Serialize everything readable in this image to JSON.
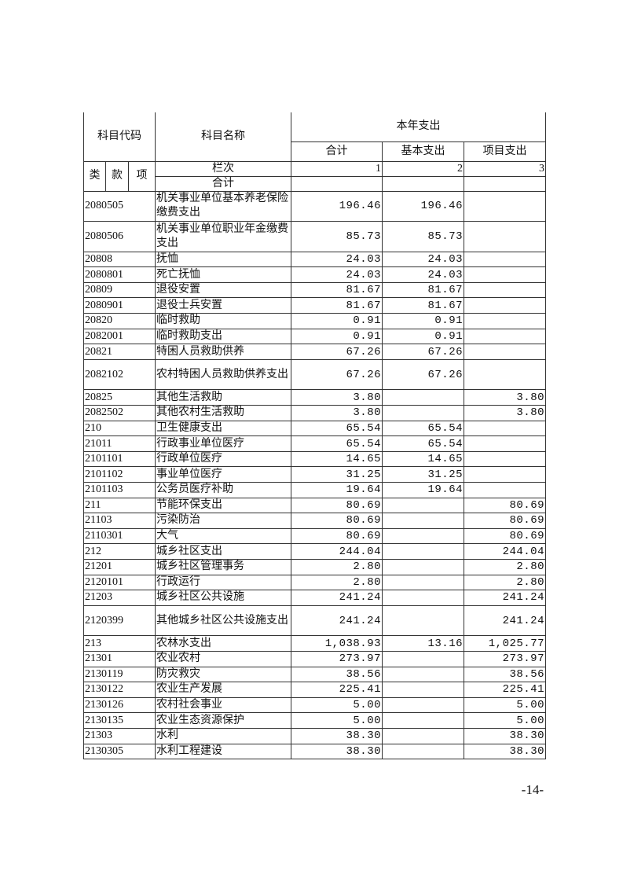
{
  "header": {
    "code_title": "科目代码",
    "name_title": "科目名称",
    "year_title": "本年支出",
    "col_total": "合计",
    "col_basic": "基本支出",
    "col_project": "项目支出",
    "lei": "类",
    "kuan": "款",
    "xiang": "项",
    "lanci": "栏次",
    "lanci_1": "1",
    "lanci_2": "2",
    "lanci_3": "3",
    "total_label": "合计"
  },
  "rows": [
    {
      "code": "2080505",
      "name": "机关事业单位基本养老保险缴费支出",
      "total": "196.46",
      "basic": "196.46",
      "project": "",
      "double": true
    },
    {
      "code": "2080506",
      "name": "机关事业单位职业年金缴费支出",
      "total": "85.73",
      "basic": "85.73",
      "project": "",
      "double": true
    },
    {
      "code": "20808",
      "name": "抚恤",
      "total": "24.03",
      "basic": "24.03",
      "project": ""
    },
    {
      "code": "2080801",
      "name": "死亡抚恤",
      "total": "24.03",
      "basic": "24.03",
      "project": ""
    },
    {
      "code": "20809",
      "name": "退役安置",
      "total": "81.67",
      "basic": "81.67",
      "project": ""
    },
    {
      "code": "2080901",
      "name": "退役士兵安置",
      "total": "81.67",
      "basic": "81.67",
      "project": ""
    },
    {
      "code": "20820",
      "name": "临时救助",
      "total": "0.91",
      "basic": "0.91",
      "project": ""
    },
    {
      "code": "2082001",
      "name": "临时救助支出",
      "total": "0.91",
      "basic": "0.91",
      "project": ""
    },
    {
      "code": "20821",
      "name": "特困人员救助供养",
      "total": "67.26",
      "basic": "67.26",
      "project": ""
    },
    {
      "code": "2082102",
      "name": "农村特困人员救助供养支出",
      "total": "67.26",
      "basic": "67.26",
      "project": "",
      "double": true
    },
    {
      "code": "20825",
      "name": "其他生活救助",
      "total": "3.80",
      "basic": "",
      "project": "3.80"
    },
    {
      "code": "2082502",
      "name": "其他农村生活救助",
      "total": "3.80",
      "basic": "",
      "project": "3.80"
    },
    {
      "code": "210",
      "name": "卫生健康支出",
      "total": "65.54",
      "basic": "65.54",
      "project": ""
    },
    {
      "code": "21011",
      "name": "行政事业单位医疗",
      "total": "65.54",
      "basic": "65.54",
      "project": ""
    },
    {
      "code": "2101101",
      "name": "行政单位医疗",
      "total": "14.65",
      "basic": "14.65",
      "project": ""
    },
    {
      "code": "2101102",
      "name": "事业单位医疗",
      "total": "31.25",
      "basic": "31.25",
      "project": ""
    },
    {
      "code": "2101103",
      "name": "公务员医疗补助",
      "total": "19.64",
      "basic": "19.64",
      "project": ""
    },
    {
      "code": "211",
      "name": "节能环保支出",
      "total": "80.69",
      "basic": "",
      "project": "80.69"
    },
    {
      "code": "21103",
      "name": "污染防治",
      "total": "80.69",
      "basic": "",
      "project": "80.69"
    },
    {
      "code": "2110301",
      "name": "大气",
      "total": "80.69",
      "basic": "",
      "project": "80.69"
    },
    {
      "code": "212",
      "name": "城乡社区支出",
      "total": "244.04",
      "basic": "",
      "project": "244.04"
    },
    {
      "code": "21201",
      "name": "城乡社区管理事务",
      "total": "2.80",
      "basic": "",
      "project": "2.80"
    },
    {
      "code": "2120101",
      "name": "行政运行",
      "total": "2.80",
      "basic": "",
      "project": "2.80"
    },
    {
      "code": "21203",
      "name": "城乡社区公共设施",
      "total": "241.24",
      "basic": "",
      "project": "241.24"
    },
    {
      "code": "2120399",
      "name": "其他城乡社区公共设施支出",
      "total": "241.24",
      "basic": "",
      "project": "241.24",
      "double": true
    },
    {
      "code": "213",
      "name": "农林水支出",
      "total": "1,038.93",
      "basic": "13.16",
      "project": "1,025.77"
    },
    {
      "code": "21301",
      "name": "农业农村",
      "total": "273.97",
      "basic": "",
      "project": "273.97"
    },
    {
      "code": "2130119",
      "name": "防灾救灾",
      "total": "38.56",
      "basic": "",
      "project": "38.56"
    },
    {
      "code": "2130122",
      "name": "农业生产发展",
      "total": "225.41",
      "basic": "",
      "project": "225.41"
    },
    {
      "code": "2130126",
      "name": "农村社会事业",
      "total": "5.00",
      "basic": "",
      "project": "5.00"
    },
    {
      "code": "2130135",
      "name": "农业生态资源保护",
      "total": "5.00",
      "basic": "",
      "project": "5.00"
    },
    {
      "code": "21303",
      "name": "水利",
      "total": "38.30",
      "basic": "",
      "project": "38.30"
    },
    {
      "code": "2130305",
      "name": "水利工程建设",
      "total": "38.30",
      "basic": "",
      "project": "38.30"
    }
  ],
  "footer": {
    "page_number": "-14-"
  }
}
